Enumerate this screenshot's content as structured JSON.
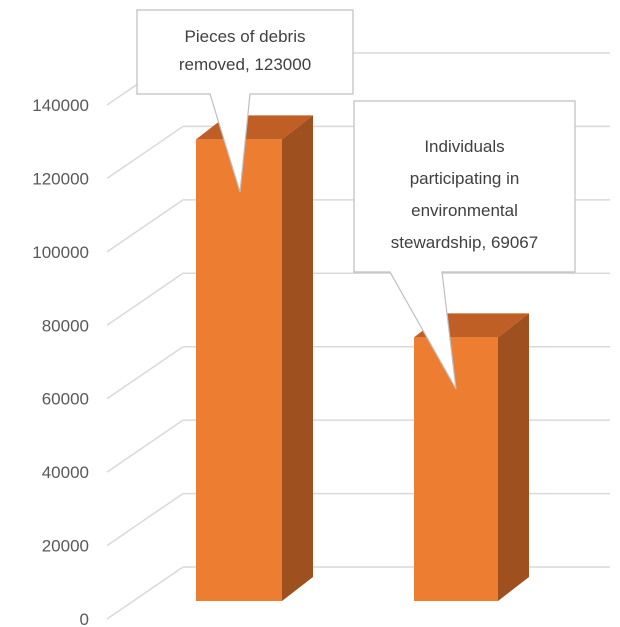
{
  "chart_data": {
    "type": "bar",
    "categories": [
      "Pieces of debris removed",
      "Individuals participating in environmental stewardship"
    ],
    "values": [
      123000,
      69067
    ],
    "title": "",
    "xlabel": "",
    "ylabel": "",
    "ylim": [
      0,
      140000
    ],
    "yticks": [
      0,
      20000,
      40000,
      60000,
      80000,
      100000,
      120000,
      140000
    ],
    "grid": true,
    "three_d": true,
    "data_labels": [
      {
        "lines": [
          "Pieces of debris",
          "removed, 123000"
        ]
      },
      {
        "lines": [
          "Individuals",
          "participating in",
          "environmental",
          "stewardship, 69067"
        ]
      }
    ],
    "colors": {
      "bar_front": "#ED7D31",
      "bar_side": "#9E501E",
      "bar_top": "#BF5F26",
      "grid": "#D9D9D9",
      "tick_text": "#595959",
      "callout_border": "#BFBFBF",
      "callout_text": "#404040"
    }
  }
}
